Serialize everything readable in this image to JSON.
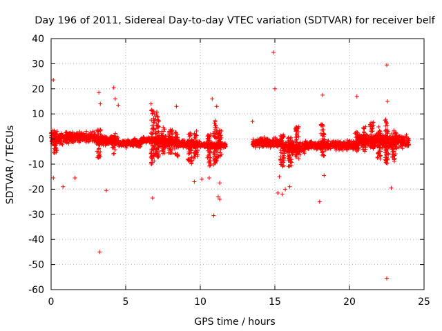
{
  "chart_data": {
    "type": "scatter",
    "title": "Day 196 of 2011, Sidereal Day-to-day VTEC variation (SDTVAR) for receiver belf",
    "xlabel": "GPS time / hours",
    "ylabel": "SDTVAR / TECUs",
    "xlim": [
      0,
      25
    ],
    "ylim": [
      -60,
      40
    ],
    "xticks": [
      0,
      5,
      10,
      15,
      20,
      25
    ],
    "yticks": [
      -60,
      -50,
      -40,
      -30,
      -20,
      -10,
      0,
      10,
      20,
      30,
      40
    ],
    "grid": true,
    "grid_style": "dotted",
    "marker": "+",
    "series_color": "#ff0000",
    "series": [
      {
        "name": "SDTVAR",
        "bands": [
          {
            "x0": 0.0,
            "x1": 1.5,
            "ylo": -3,
            "yhi": 4
          },
          {
            "x0": 1.5,
            "x1": 3.0,
            "ylo": -2,
            "yhi": 3.5
          },
          {
            "x0": 3.0,
            "x1": 4.5,
            "ylo": -3,
            "yhi": 2
          },
          {
            "x0": 4.5,
            "x1": 6.0,
            "ylo": -4,
            "yhi": 0.5
          },
          {
            "x0": 6.0,
            "x1": 7.0,
            "ylo": -2,
            "yhi": 1
          },
          {
            "x0": 7.0,
            "x1": 8.5,
            "ylo": -4,
            "yhi": 2
          },
          {
            "x0": 8.5,
            "x1": 10.0,
            "ylo": -4,
            "yhi": 0
          },
          {
            "x0": 10.0,
            "x1": 11.7,
            "ylo": -4,
            "yhi": -1
          },
          {
            "x0": 13.5,
            "x1": 15.5,
            "ylo": -4,
            "yhi": 1
          },
          {
            "x0": 15.5,
            "x1": 17.0,
            "ylo": -7,
            "yhi": 0
          },
          {
            "x0": 17.0,
            "x1": 20.5,
            "ylo": -5,
            "yhi": 0
          },
          {
            "x0": 20.5,
            "x1": 22.0,
            "ylo": -4,
            "yhi": 3
          },
          {
            "x0": 22.0,
            "x1": 24.0,
            "ylo": -5,
            "yhi": 3
          }
        ],
        "spikes": [
          {
            "x": 0.3,
            "ylo": -6,
            "yhi": 4
          },
          {
            "x": 3.2,
            "ylo": -9,
            "yhi": 4
          },
          {
            "x": 4.2,
            "ylo": -6,
            "yhi": 3
          },
          {
            "x": 6.8,
            "ylo": -10,
            "yhi": 12
          },
          {
            "x": 7.1,
            "ylo": -8,
            "yhi": 11
          },
          {
            "x": 7.5,
            "ylo": -6,
            "yhi": 5
          },
          {
            "x": 8.0,
            "ylo": -7,
            "yhi": 4
          },
          {
            "x": 8.4,
            "ylo": -7,
            "yhi": 3
          },
          {
            "x": 9.3,
            "ylo": -10,
            "yhi": 3
          },
          {
            "x": 9.7,
            "ylo": -8,
            "yhi": 4
          },
          {
            "x": 10.6,
            "ylo": -11,
            "yhi": 2
          },
          {
            "x": 11.0,
            "ylo": -11,
            "yhi": 8
          },
          {
            "x": 11.3,
            "ylo": -8,
            "yhi": 4
          },
          {
            "x": 15.5,
            "ylo": -11,
            "yhi": 2
          },
          {
            "x": 16.0,
            "ylo": -11,
            "yhi": 1
          },
          {
            "x": 16.5,
            "ylo": -8,
            "yhi": 5
          },
          {
            "x": 18.2,
            "ylo": -7,
            "yhi": 6
          },
          {
            "x": 20.5,
            "ylo": -5,
            "yhi": 3
          },
          {
            "x": 21.0,
            "ylo": -5,
            "yhi": 5
          },
          {
            "x": 21.5,
            "ylo": -4,
            "yhi": 7
          },
          {
            "x": 22.0,
            "ylo": -9,
            "yhi": 5
          },
          {
            "x": 22.5,
            "ylo": -10,
            "yhi": 8
          },
          {
            "x": 23.0,
            "ylo": -9,
            "yhi": 5
          }
        ],
        "outliers": [
          {
            "x": 0.15,
            "y": 23.5
          },
          {
            "x": 0.15,
            "y": -15.5
          },
          {
            "x": 0.8,
            "y": -19
          },
          {
            "x": 1.6,
            "y": -15.5
          },
          {
            "x": 3.2,
            "y": 18.5
          },
          {
            "x": 3.3,
            "y": 14
          },
          {
            "x": 3.25,
            "y": -45
          },
          {
            "x": 3.7,
            "y": -20.5
          },
          {
            "x": 4.2,
            "y": 20.5
          },
          {
            "x": 4.3,
            "y": 16
          },
          {
            "x": 4.5,
            "y": 13.5
          },
          {
            "x": 6.7,
            "y": 14
          },
          {
            "x": 6.8,
            "y": -23.5
          },
          {
            "x": 8.4,
            "y": 13
          },
          {
            "x": 9.6,
            "y": -17
          },
          {
            "x": 10.1,
            "y": -16
          },
          {
            "x": 10.6,
            "y": -15.5
          },
          {
            "x": 10.8,
            "y": 16
          },
          {
            "x": 10.9,
            "y": -30.5
          },
          {
            "x": 11.1,
            "y": 13
          },
          {
            "x": 11.2,
            "y": -23
          },
          {
            "x": 11.3,
            "y": -17.5
          },
          {
            "x": 11.3,
            "y": -24
          },
          {
            "x": 13.5,
            "y": 7
          },
          {
            "x": 14.9,
            "y": 34.5
          },
          {
            "x": 15.0,
            "y": 20
          },
          {
            "x": 15.3,
            "y": -15
          },
          {
            "x": 15.2,
            "y": -21.5
          },
          {
            "x": 15.5,
            "y": -22
          },
          {
            "x": 15.7,
            "y": -20
          },
          {
            "x": 16.0,
            "y": -19
          },
          {
            "x": 18.0,
            "y": -25
          },
          {
            "x": 18.2,
            "y": 17.5
          },
          {
            "x": 18.3,
            "y": -14.5
          },
          {
            "x": 20.5,
            "y": 17
          },
          {
            "x": 22.5,
            "y": 29.5
          },
          {
            "x": 22.55,
            "y": 15
          },
          {
            "x": 22.5,
            "y": -55.5
          },
          {
            "x": 22.8,
            "y": -19.5
          }
        ]
      }
    ]
  }
}
